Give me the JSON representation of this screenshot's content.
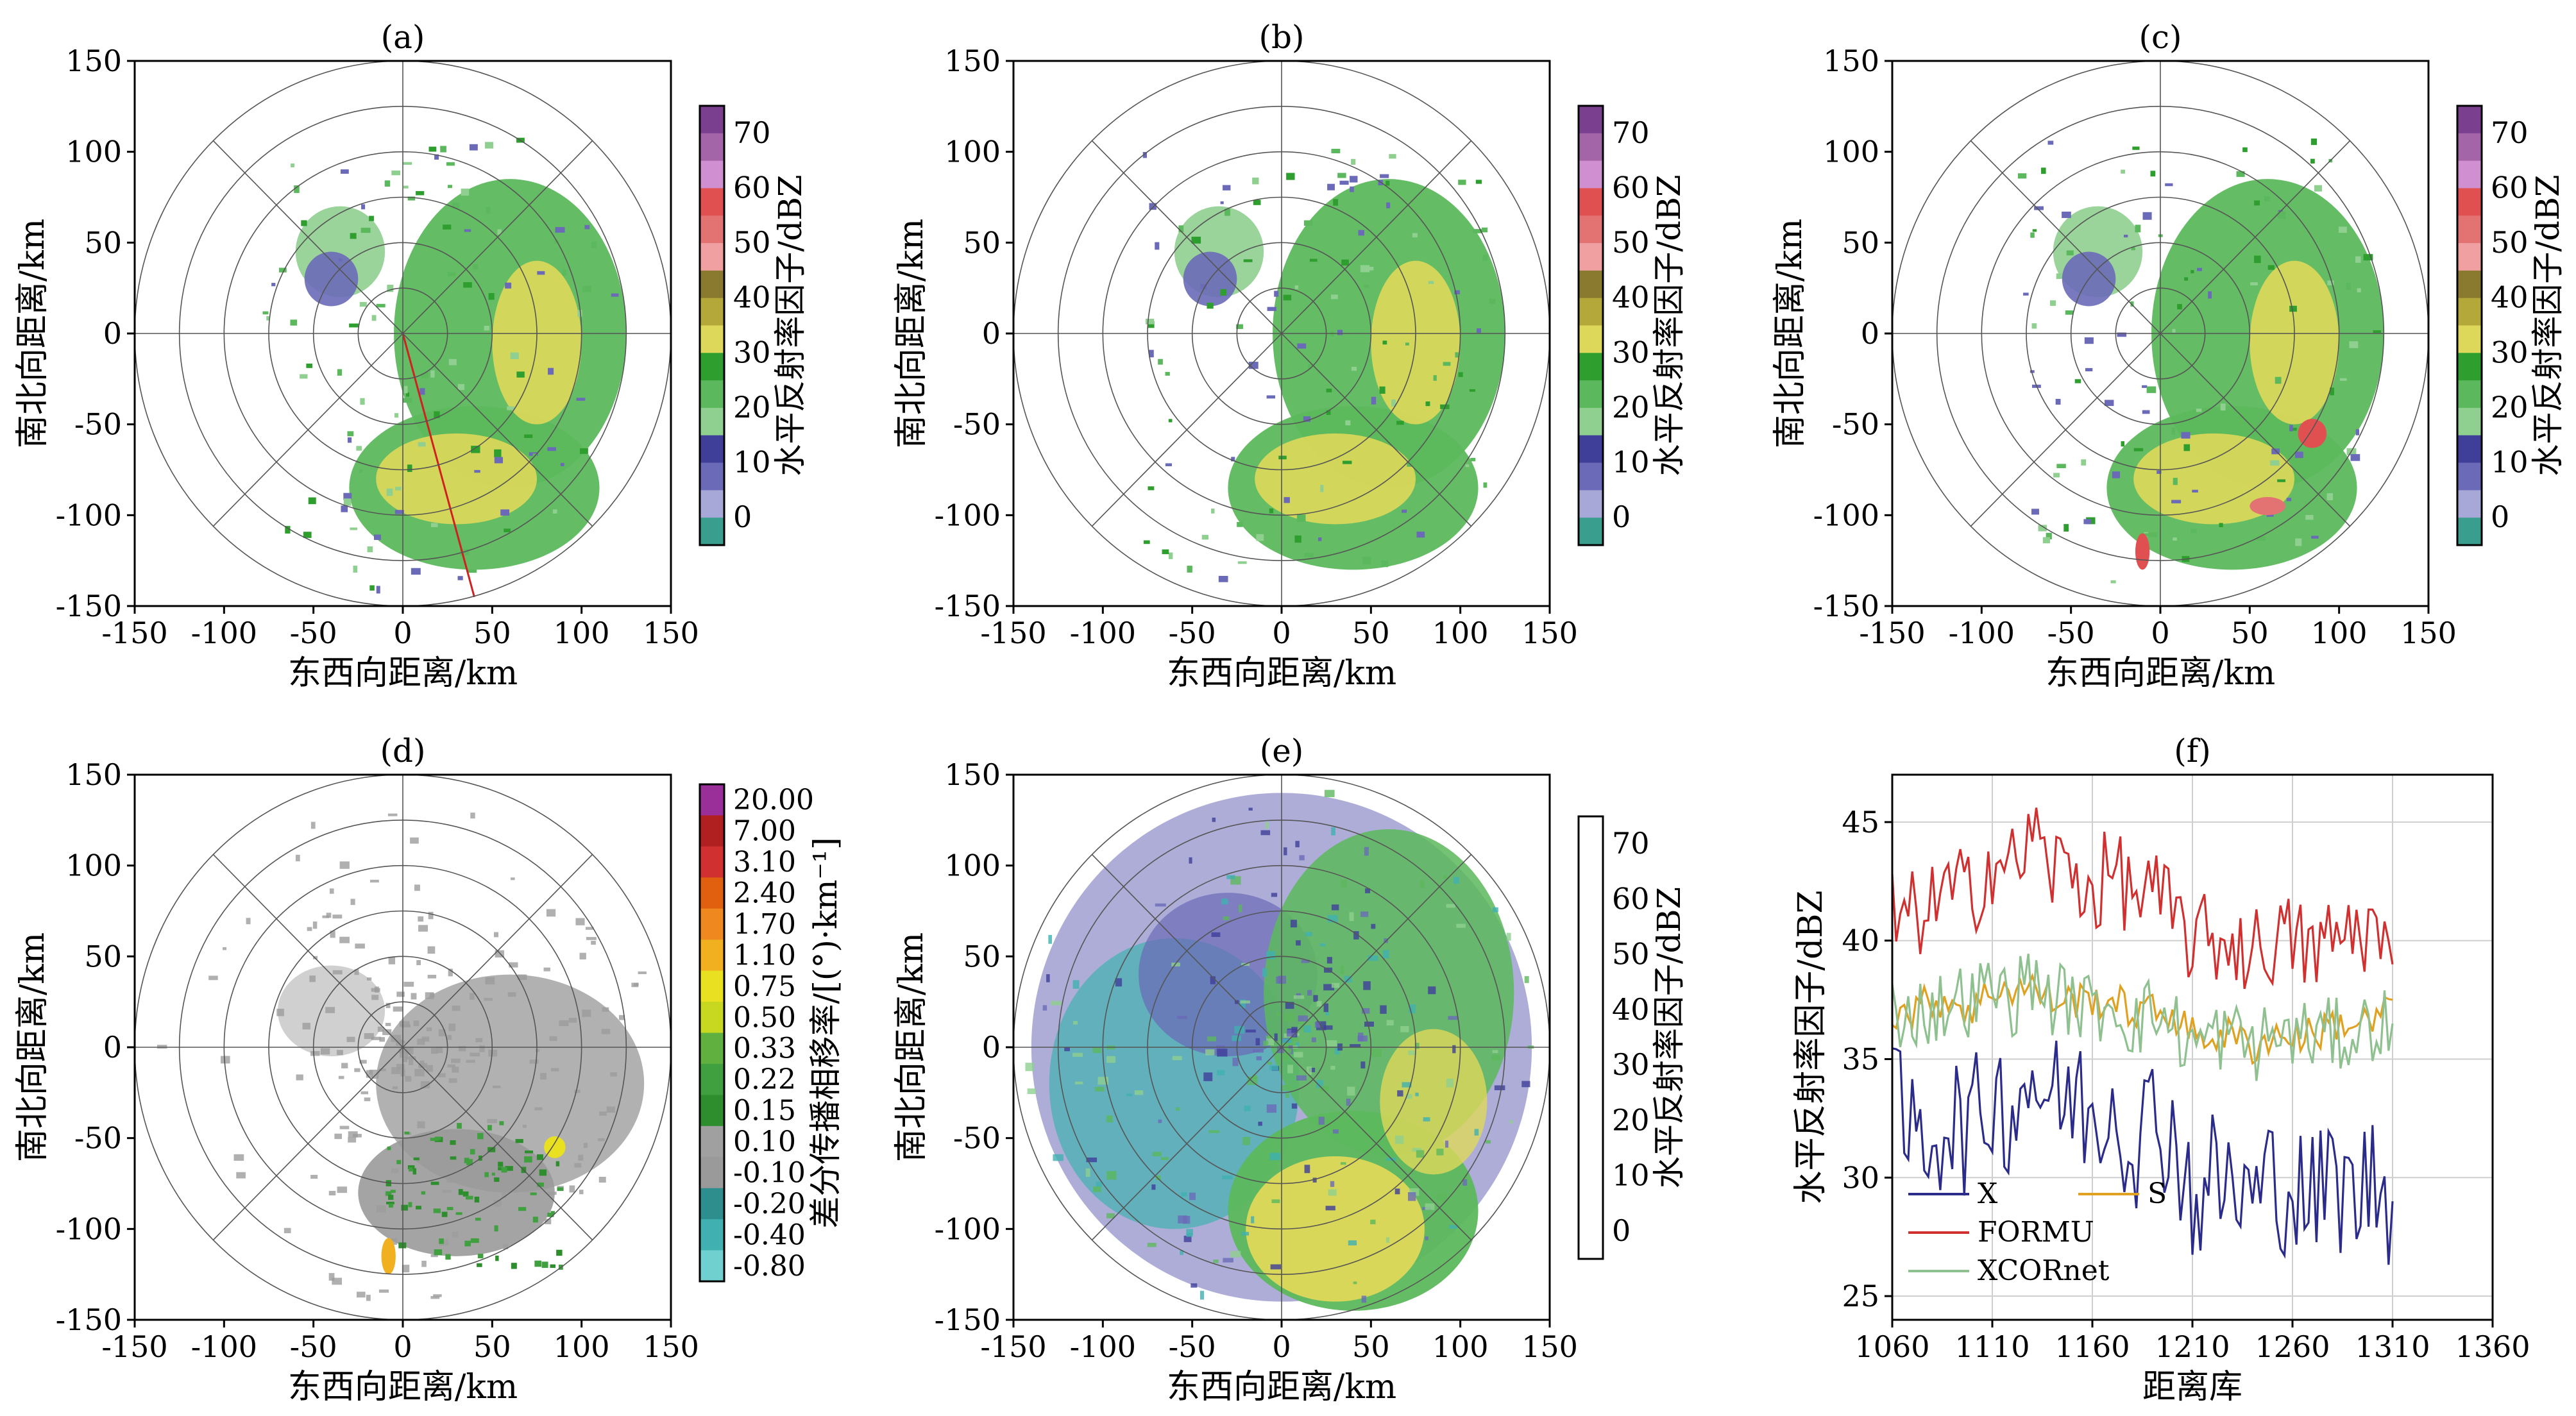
{
  "figure": {
    "panel_titles": [
      "(a)",
      "(b)",
      "(c)",
      "(d)",
      "(e)",
      "(f)"
    ],
    "xlabel": "东西向距离/km",
    "ylabel": "南北向距离/km"
  },
  "ppi_axes": {
    "xticks": [
      "-150",
      "-100",
      "-50",
      "0",
      "50",
      "100",
      "150"
    ],
    "yticks": [
      "150",
      "100",
      "50",
      "0",
      "-50",
      "-100",
      "-150"
    ],
    "range": [
      -150,
      150
    ],
    "ring_radii_km": [
      25,
      50,
      75,
      100,
      125,
      150
    ]
  },
  "colorbar_reflectivity": {
    "label": "水平反射率因子/dBZ",
    "ticks": [
      "70",
      "60",
      "50",
      "40",
      "30",
      "20",
      "10",
      "0"
    ],
    "colors": [
      "#7b3f8f",
      "#a464a8",
      "#d08fd0",
      "#e05050",
      "#e37373",
      "#f0a0a0",
      "#8a7a30",
      "#b5a83a",
      "#ded85a",
      "#2e9e2e",
      "#5cb85c",
      "#8fcf8f",
      "#3f3f9a",
      "#6a6ab8",
      "#a8a8d8",
      "#3a9e8e"
    ]
  },
  "colorbar_kdp": {
    "label": "差分传播相移率/[(°)·km⁻¹]",
    "ticks": [
      "20.00",
      "7.00",
      "3.10",
      "2.40",
      "1.70",
      "1.10",
      "0.75",
      "0.50",
      "0.33",
      "0.22",
      "0.15",
      "0.10",
      "-0.10",
      "-0.20",
      "-0.40",
      "-0.80"
    ],
    "colors": [
      "#9a2f9a",
      "#b02020",
      "#d03030",
      "#e06010",
      "#f08820",
      "#f0b020",
      "#e8e020",
      "#c8d820",
      "#60b040",
      "#40a040",
      "#2e8e2e",
      "#a0a0a0",
      "#9a9a9a",
      "#2e8e8e",
      "#40b0b0",
      "#70d0d0"
    ]
  },
  "colorbar_empty": {
    "label": "水平反射率因子/dBZ",
    "ticks": [
      "70",
      "60",
      "50",
      "40",
      "30",
      "20",
      "10",
      "0"
    ]
  },
  "chart_data": [
    {
      "panel": "f",
      "type": "line",
      "title": "(f)",
      "xlabel": "距离库",
      "ylabel": "水平反射率因子/dBZ",
      "xlim": [
        1060,
        1360
      ],
      "ylim": [
        24,
        47
      ],
      "xticks": [
        "1060",
        "1110",
        "1160",
        "1210",
        "1260",
        "1310",
        "1360"
      ],
      "yticks": [
        "45",
        "40",
        "35",
        "30",
        "25"
      ],
      "series": [
        {
          "name": "X",
          "color": "#2b2b8a",
          "x": [
            1060,
            1070,
            1080,
            1090,
            1100,
            1110,
            1120,
            1130,
            1140,
            1150,
            1160,
            1170,
            1180,
            1190,
            1200,
            1210,
            1220,
            1230,
            1240,
            1250,
            1260,
            1270,
            1280,
            1290,
            1300,
            1310
          ],
          "y": [
            33,
            31.5,
            32,
            32.5,
            32,
            33.5,
            33,
            34.5,
            33,
            33.5,
            32.5,
            33.5,
            31.5,
            32.5,
            32,
            29,
            30,
            29.5,
            29,
            30,
            29.5,
            29,
            30,
            29,
            30,
            29
          ]
        },
        {
          "name": "S",
          "color": "#e0a020",
          "x": [
            1060,
            1070,
            1080,
            1090,
            1100,
            1110,
            1120,
            1130,
            1140,
            1150,
            1160,
            1170,
            1180,
            1190,
            1200,
            1210,
            1220,
            1230,
            1240,
            1250,
            1260,
            1270,
            1280,
            1290,
            1300,
            1310
          ],
          "y": [
            37,
            37,
            37.5,
            37.5,
            37,
            38,
            38,
            38,
            37.5,
            37.5,
            37.5,
            37.5,
            37,
            37,
            37,
            36,
            36,
            36,
            35.5,
            36,
            36,
            36,
            36.5,
            36.5,
            36.5,
            37.5
          ]
        },
        {
          "name": "FORMU",
          "color": "#d03030",
          "x": [
            1060,
            1070,
            1080,
            1090,
            1100,
            1110,
            1120,
            1130,
            1140,
            1150,
            1160,
            1170,
            1180,
            1190,
            1200,
            1210,
            1220,
            1230,
            1240,
            1250,
            1260,
            1270,
            1280,
            1290,
            1300,
            1310
          ],
          "y": [
            41,
            41,
            41.5,
            42,
            42,
            43.5,
            43,
            44.5,
            43,
            43,
            42,
            43,
            42,
            42,
            41,
            40,
            40,
            40,
            39.5,
            40,
            40,
            39.5,
            40,
            40.5,
            40.5,
            39
          ]
        },
        {
          "name": "XCORnet",
          "color": "#8fc08f",
          "x": [
            1060,
            1070,
            1080,
            1090,
            1100,
            1110,
            1120,
            1130,
            1140,
            1150,
            1160,
            1170,
            1180,
            1190,
            1200,
            1210,
            1220,
            1230,
            1240,
            1250,
            1260,
            1270,
            1280,
            1290,
            1300,
            1310
          ],
          "y": [
            37,
            37,
            37,
            37.5,
            37.5,
            38,
            37.5,
            38.5,
            37.5,
            37.5,
            37,
            37.5,
            36.5,
            37,
            36.5,
            35.5,
            36,
            36,
            35.5,
            36,
            36,
            36,
            36,
            36,
            36.5,
            36.5
          ]
        }
      ]
    }
  ]
}
